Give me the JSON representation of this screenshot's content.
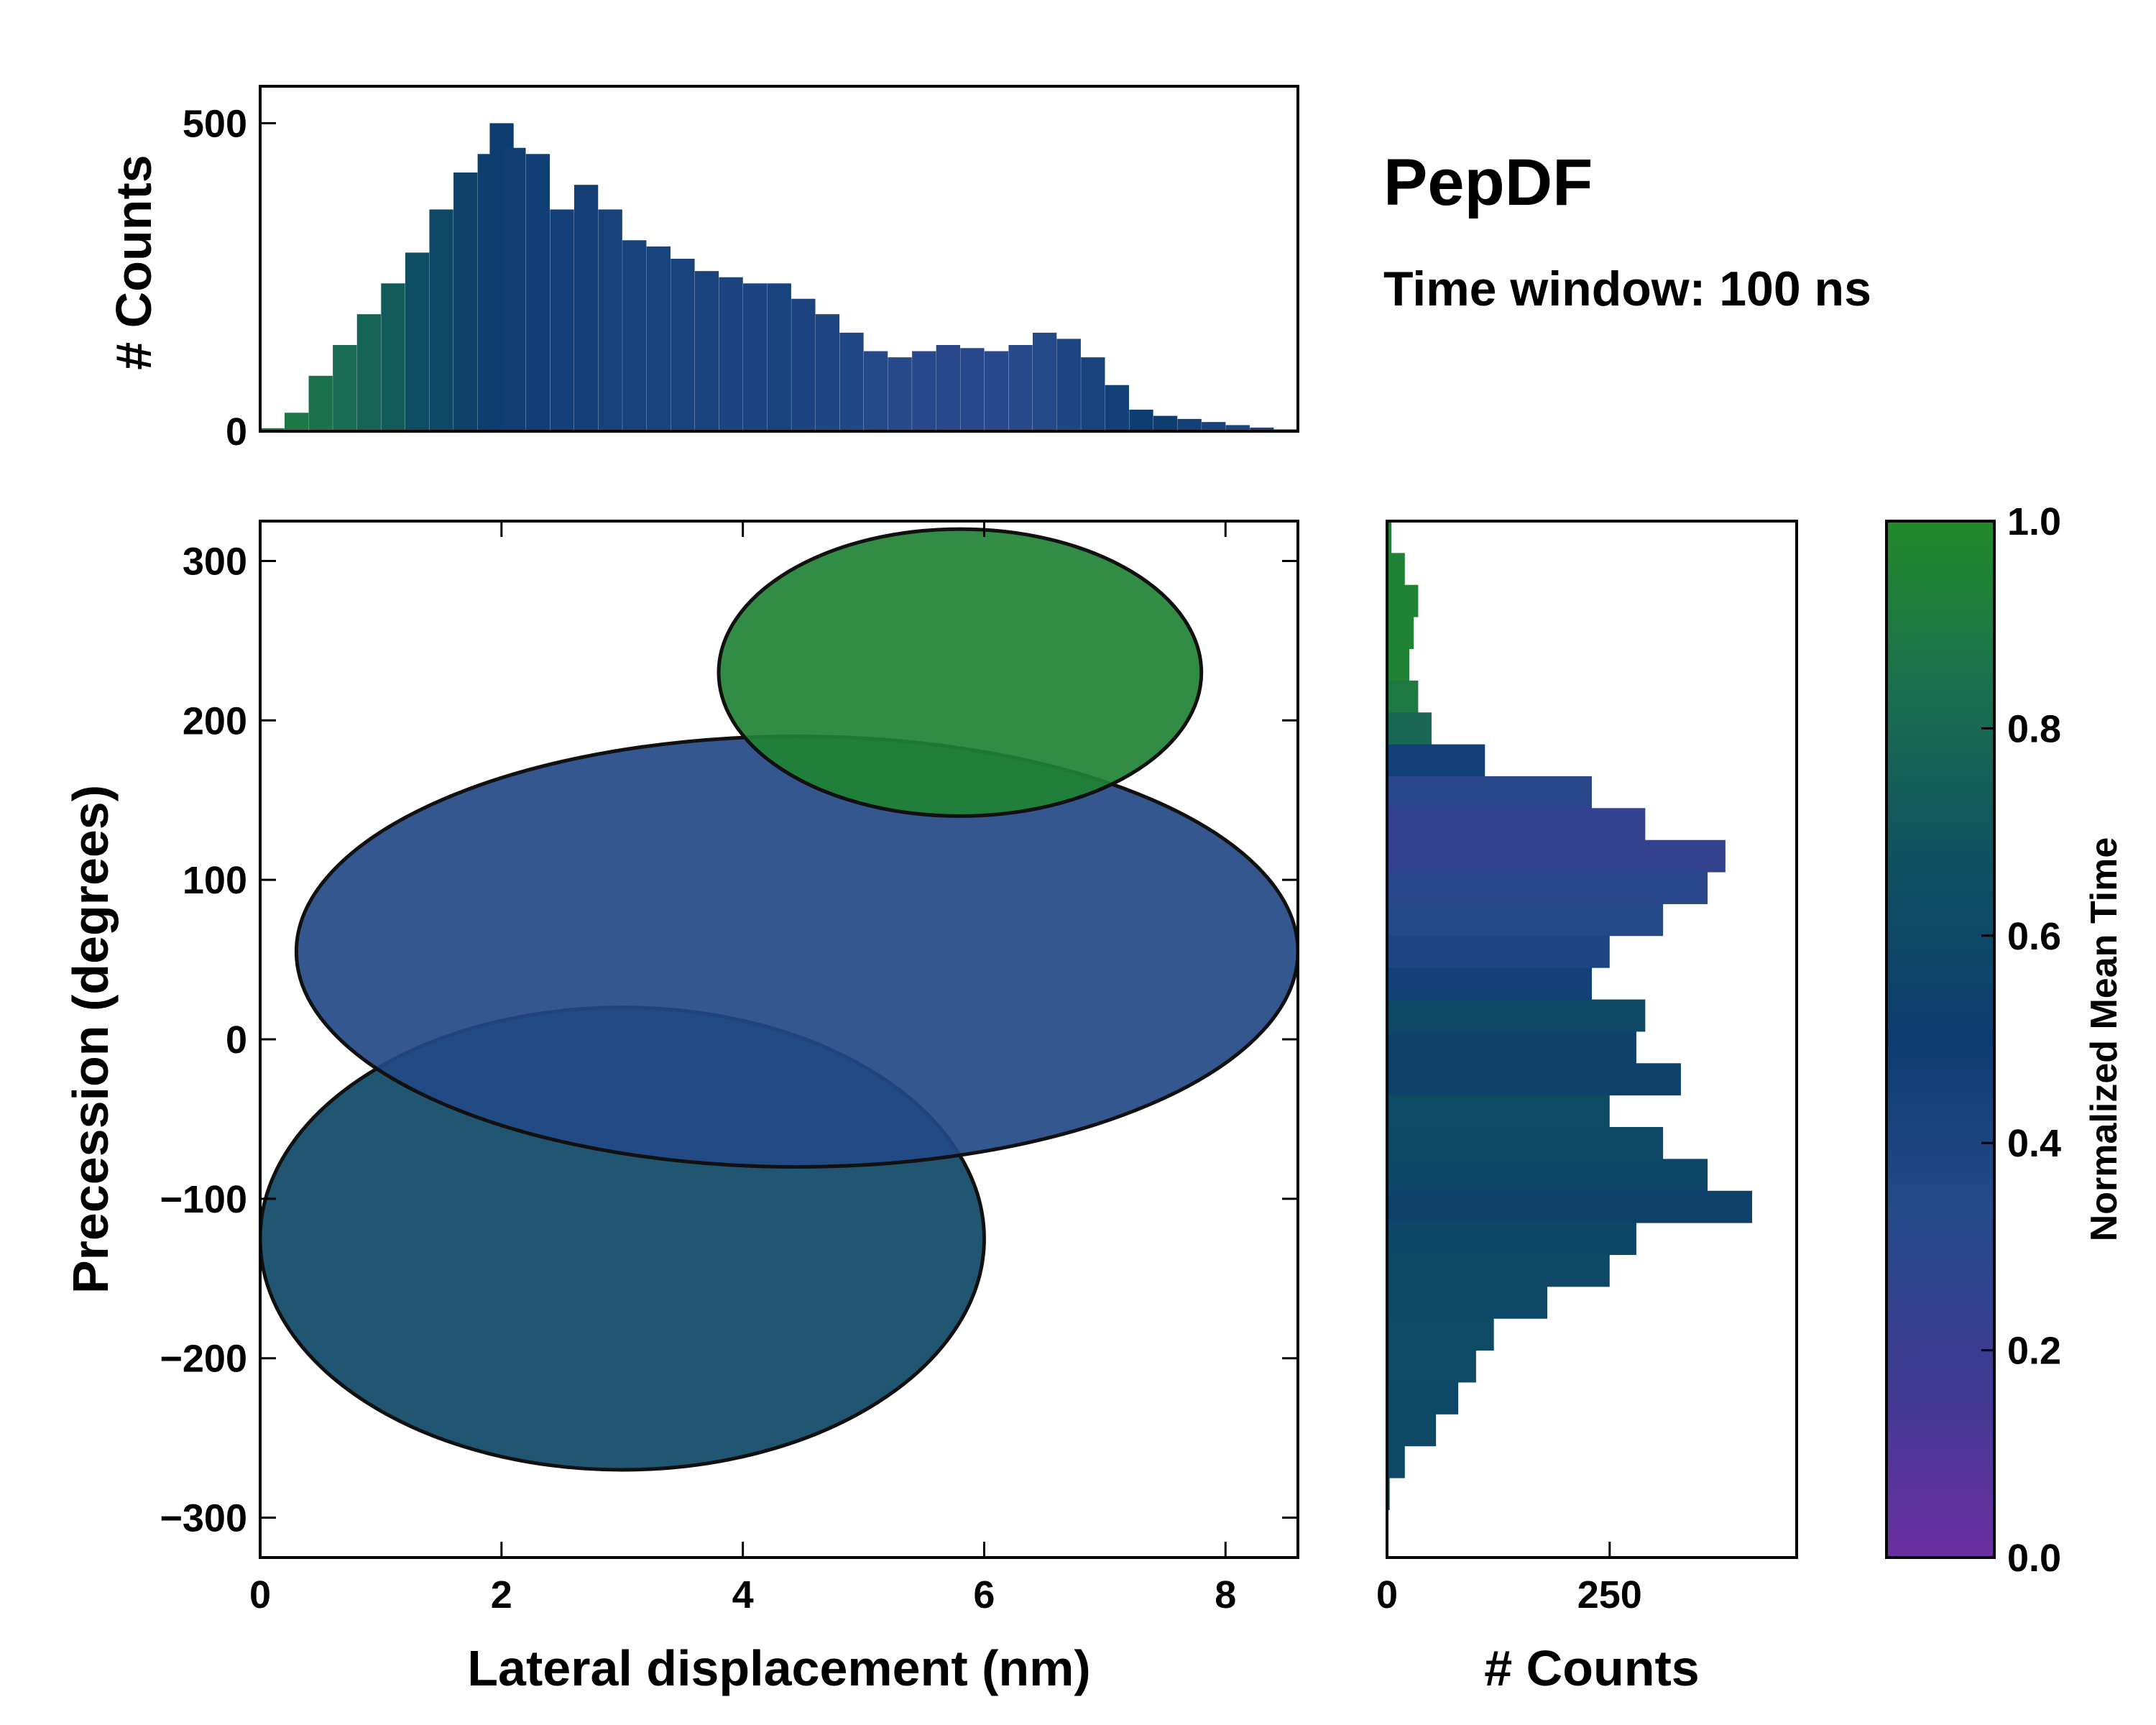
{
  "title": "PepDF",
  "subtitle": "Time window: 100 ns",
  "chart_data": [
    {
      "id": "main",
      "type": "heatmap",
      "xlabel": "Lateral displacement (nm)",
      "ylabel": "Precession (degrees)",
      "xlim": [
        0,
        8.6
      ],
      "ylim": [
        -325,
        325
      ],
      "xticks": [
        0,
        2,
        4,
        6,
        8
      ],
      "xtick_labels": [
        "0",
        "2",
        "4",
        "6",
        "8"
      ],
      "yticks": [
        300,
        200,
        100,
        0,
        -100,
        -200,
        -300
      ],
      "ytick_labels": [
        "300",
        "200",
        "100",
        "0",
        "−100",
        "−200",
        "−300"
      ],
      "color_value": "Normalized Mean Time",
      "regions": [
        {
          "name": "lower-left basin",
          "x_range": [
            0,
            6
          ],
          "y_range": [
            -270,
            20
          ],
          "mean_time": 0.6
        },
        {
          "name": "central band",
          "x_range": [
            0.3,
            8.6
          ],
          "y_range": [
            -80,
            190
          ],
          "mean_time": 0.35
        },
        {
          "name": "upper-right lobe",
          "x_range": [
            3.8,
            7.8
          ],
          "y_range": [
            140,
            320
          ],
          "mean_time": 0.95
        }
      ]
    },
    {
      "id": "top-histogram",
      "type": "bar",
      "ylabel": "# Counts",
      "xlim": [
        0,
        8.6
      ],
      "ylim": [
        0,
        560
      ],
      "yticks": [
        0,
        500
      ],
      "ytick_labels": [
        "0",
        "500"
      ],
      "x": [
        0.1,
        0.3,
        0.5,
        0.7,
        0.9,
        1.1,
        1.3,
        1.5,
        1.7,
        1.9,
        2.0,
        2.1,
        2.3,
        2.5,
        2.7,
        2.9,
        3.1,
        3.3,
        3.5,
        3.7,
        3.9,
        4.1,
        4.3,
        4.5,
        4.7,
        4.9,
        5.1,
        5.3,
        5.5,
        5.7,
        5.9,
        6.1,
        6.3,
        6.5,
        6.7,
        6.9,
        7.1,
        7.3,
        7.5,
        7.7,
        7.9,
        8.1,
        8.3,
        8.5
      ],
      "values": [
        5,
        30,
        90,
        140,
        190,
        240,
        290,
        360,
        420,
        450,
        500,
        460,
        450,
        360,
        400,
        360,
        310,
        300,
        280,
        260,
        250,
        240,
        240,
        215,
        190,
        160,
        130,
        120,
        130,
        140,
        135,
        130,
        140,
        160,
        150,
        120,
        75,
        35,
        25,
        20,
        15,
        10,
        6,
        3
      ],
      "mean_time": [
        0.9,
        0.88,
        0.85,
        0.82,
        0.78,
        0.72,
        0.65,
        0.6,
        0.55,
        0.52,
        0.5,
        0.48,
        0.47,
        0.45,
        0.46,
        0.44,
        0.43,
        0.42,
        0.42,
        0.42,
        0.4,
        0.4,
        0.42,
        0.4,
        0.38,
        0.36,
        0.35,
        0.33,
        0.32,
        0.3,
        0.31,
        0.32,
        0.33,
        0.35,
        0.38,
        0.42,
        0.45,
        0.5,
        0.52,
        0.45,
        0.42,
        0.4,
        0.4,
        0.4
      ]
    },
    {
      "id": "right-histogram",
      "type": "bar",
      "orientation": "horizontal",
      "xlabel": "# Counts",
      "xlim": [
        0,
        460
      ],
      "ylim": [
        -325,
        325
      ],
      "xticks": [
        0,
        250
      ],
      "xtick_labels": [
        "0",
        "250"
      ],
      "y": [
        315,
        295,
        275,
        255,
        235,
        215,
        195,
        175,
        155,
        135,
        115,
        95,
        75,
        55,
        35,
        15,
        -5,
        -25,
        -45,
        -65,
        -85,
        -105,
        -125,
        -145,
        -165,
        -185,
        -205,
        -225,
        -245,
        -265,
        -285
      ],
      "values": [
        5,
        20,
        35,
        30,
        25,
        35,
        50,
        110,
        230,
        290,
        380,
        360,
        310,
        250,
        230,
        290,
        280,
        330,
        250,
        310,
        360,
        410,
        280,
        250,
        180,
        120,
        100,
        80,
        55,
        20,
        3
      ],
      "mean_time": [
        0.95,
        0.95,
        0.95,
        0.95,
        0.95,
        0.9,
        0.8,
        0.45,
        0.3,
        0.25,
        0.25,
        0.3,
        0.35,
        0.38,
        0.45,
        0.6,
        0.55,
        0.55,
        0.62,
        0.6,
        0.58,
        0.55,
        0.58,
        0.6,
        0.6,
        0.62,
        0.62,
        0.6,
        0.6,
        0.6,
        0.6
      ]
    },
    {
      "id": "colorbar",
      "type": "colorbar",
      "label": "Normalized Mean Time",
      "range": [
        0.0,
        1.0
      ],
      "ticks": [
        1.0,
        0.8,
        0.6,
        0.4,
        0.2,
        0.0
      ],
      "tick_labels": [
        "1.0",
        "0.8",
        "0.6",
        "0.4",
        "0.2",
        "0.0"
      ],
      "colors": [
        "#6a2fa0",
        "#3f3a92",
        "#254a8a",
        "#0d3c70",
        "#0f5060",
        "#1a6e50",
        "#228a2a"
      ]
    }
  ]
}
